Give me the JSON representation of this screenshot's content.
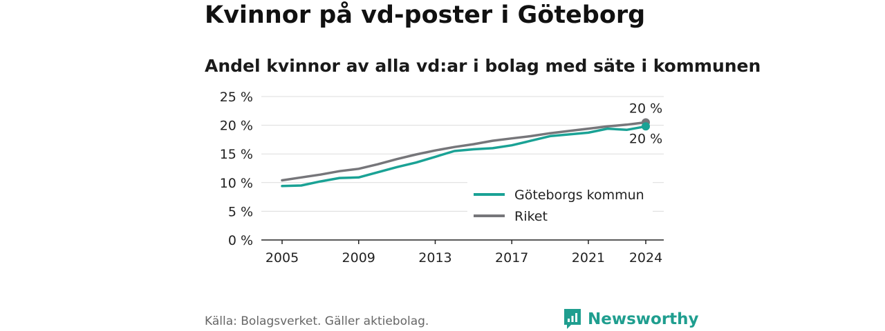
{
  "header": {
    "title": "Kvinnor på vd-poster i Göteborg",
    "subtitle": "Andel kvinnor av alla vd:ar i bolag med säte i kommunen"
  },
  "footer": {
    "source": "Källa: Bolagsverket. Gäller aktiebolag.",
    "brand": "Newsworthy",
    "brand_color": "#1f9e8f"
  },
  "chart_data": {
    "type": "line",
    "title": "",
    "xlabel": "",
    "ylabel": "",
    "x": [
      2005,
      2006,
      2007,
      2008,
      2009,
      2010,
      2011,
      2012,
      2013,
      2014,
      2015,
      2016,
      2017,
      2018,
      2019,
      2020,
      2021,
      2022,
      2023,
      2024
    ],
    "xticks": [
      2005,
      2009,
      2013,
      2017,
      2021,
      2024
    ],
    "ylim": [
      0,
      25
    ],
    "yticks": [
      0,
      5,
      10,
      15,
      20,
      25
    ],
    "ytick_labels": [
      "0 %",
      "5 %",
      "10 %",
      "15 %",
      "20 %",
      "25 %"
    ],
    "grid": true,
    "legend_position": "bottom-right",
    "series": [
      {
        "name": "Göteborgs kommun",
        "color": "#1aa295",
        "values": [
          9.4,
          9.5,
          10.2,
          10.8,
          10.9,
          11.8,
          12.7,
          13.5,
          14.5,
          15.5,
          15.8,
          16.0,
          16.5,
          17.3,
          18.1,
          18.4,
          18.7,
          19.4,
          19.2,
          19.8
        ],
        "end_label": "20 %"
      },
      {
        "name": "Riket",
        "color": "#76767a",
        "values": [
          10.4,
          10.9,
          11.4,
          12.0,
          12.4,
          13.2,
          14.1,
          14.9,
          15.6,
          16.2,
          16.7,
          17.3,
          17.7,
          18.1,
          18.6,
          19.0,
          19.4,
          19.8,
          20.1,
          20.5
        ],
        "end_label": "20 %"
      }
    ]
  }
}
